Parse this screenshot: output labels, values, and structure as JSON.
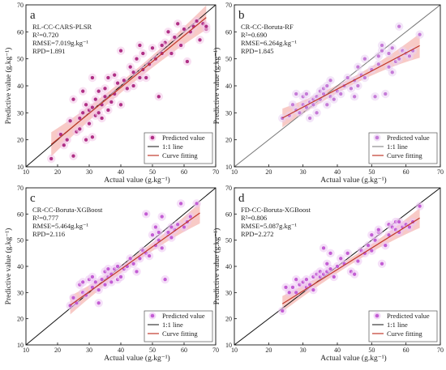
{
  "chart_data": [
    {
      "type": "scatter",
      "panel_label": "a",
      "title_lines": [
        "RL-CC-CARS-PLSR",
        "R²=0.720",
        "RMSE=7.019g.kg⁻¹",
        "RPD=1.891"
      ],
      "xlabel": "Actual value (g.kg⁻¹)",
      "ylabel": "Predictive value (g.kg⁻¹)",
      "xlim": [
        10,
        70
      ],
      "ylim": [
        10,
        70
      ],
      "xticks": [
        "10",
        "20",
        "30",
        "40",
        "50",
        "60",
        "70"
      ],
      "yticks": [
        "10",
        "20",
        "30",
        "40",
        "50",
        "60",
        "70"
      ],
      "fit": {
        "slope": 0.96,
        "intercept": 1.0,
        "x_range": [
          18,
          67
        ]
      },
      "ci_halfwidth": [
        4.5,
        2.0,
        4.5
      ],
      "points": [
        [
          18,
          13
        ],
        [
          21,
          22
        ],
        [
          22,
          18
        ],
        [
          23,
          20
        ],
        [
          24,
          27
        ],
        [
          25,
          35
        ],
        [
          25,
          14
        ],
        [
          26,
          23
        ],
        [
          27,
          24
        ],
        [
          27,
          28
        ],
        [
          28,
          30
        ],
        [
          28,
          38
        ],
        [
          29,
          33
        ],
        [
          29,
          20
        ],
        [
          30,
          26
        ],
        [
          30,
          31
        ],
        [
          31,
          32
        ],
        [
          31,
          21
        ],
        [
          32,
          29
        ],
        [
          32,
          35
        ],
        [
          33,
          30
        ],
        [
          33,
          38
        ],
        [
          34,
          28
        ],
        [
          34,
          33
        ],
        [
          35,
          36
        ],
        [
          35,
          39
        ],
        [
          36,
          31
        ],
        [
          36,
          43
        ],
        [
          37,
          34
        ],
        [
          38,
          37
        ],
        [
          38,
          44
        ],
        [
          39,
          41
        ],
        [
          40,
          33
        ],
        [
          40,
          53
        ],
        [
          41,
          42
        ],
        [
          42,
          39
        ],
        [
          43,
          47
        ],
        [
          44,
          45
        ],
        [
          44,
          40
        ],
        [
          45,
          50
        ],
        [
          46,
          43
        ],
        [
          47,
          46
        ],
        [
          47,
          52
        ],
        [
          48,
          43
        ],
        [
          49,
          48
        ],
        [
          50,
          54
        ],
        [
          51,
          50
        ],
        [
          52,
          36
        ],
        [
          53,
          52
        ],
        [
          54,
          56
        ],
        [
          55,
          60
        ],
        [
          56,
          52
        ],
        [
          57,
          58
        ],
        [
          58,
          63
        ],
        [
          59,
          55
        ],
        [
          60,
          61
        ],
        [
          61,
          49
        ],
        [
          62,
          60
        ],
        [
          63,
          62
        ],
        [
          64,
          64
        ],
        [
          65,
          57
        ],
        [
          66,
          63
        ],
        [
          67,
          61
        ],
        [
          67,
          62
        ],
        [
          46,
          55
        ],
        [
          53,
          55
        ],
        [
          31,
          43
        ]
      ],
      "legend": [
        "Predicted value",
        "1:1 line",
        "Curve fitting"
      ],
      "colors": {
        "point": "#b02f86",
        "point_halo": "#f3c6e8",
        "fit": "#c0392b",
        "band": "#f4a7a0",
        "identity": "#111111"
      }
    },
    {
      "type": "scatter",
      "panel_label": "b",
      "title_lines": [
        "CR-CC-Boruta-RF",
        "R²=0.690",
        "RMSE=6.264g.kg⁻¹",
        "RPD=1.845"
      ],
      "xlabel": "Actual value (g.kg⁻¹)",
      "ylabel": "Predictive value (g.kg⁻¹)",
      "xlim": [
        10,
        70
      ],
      "ylim": [
        10,
        70
      ],
      "xticks": [
        "10",
        "20",
        "30",
        "40",
        "50",
        "60",
        "70"
      ],
      "yticks": [
        "10",
        "20",
        "30",
        "40",
        "50",
        "60",
        "70"
      ],
      "fit": {
        "slope": 0.67,
        "intercept": 12.0,
        "x_range": [
          24,
          64
        ]
      },
      "ci_halfwidth": [
        3.5,
        1.4,
        4.5
      ],
      "points": [
        [
          24,
          28
        ],
        [
          26,
          29
        ],
        [
          27,
          33
        ],
        [
          28,
          31
        ],
        [
          28,
          37
        ],
        [
          29,
          30
        ],
        [
          30,
          33
        ],
        [
          30,
          36
        ],
        [
          31,
          32
        ],
        [
          31,
          37
        ],
        [
          32,
          34
        ],
        [
          32,
          28
        ],
        [
          33,
          35
        ],
        [
          33,
          33
        ],
        [
          34,
          36
        ],
        [
          34,
          30
        ],
        [
          35,
          38
        ],
        [
          35,
          35
        ],
        [
          36,
          37
        ],
        [
          36,
          39
        ],
        [
          37,
          33
        ],
        [
          37,
          40
        ],
        [
          38,
          36
        ],
        [
          38,
          42
        ],
        [
          39,
          35
        ],
        [
          40,
          38
        ],
        [
          41,
          37
        ],
        [
          42,
          40
        ],
        [
          43,
          43
        ],
        [
          44,
          39
        ],
        [
          45,
          42
        ],
        [
          45,
          36
        ],
        [
          46,
          40
        ],
        [
          47,
          44
        ],
        [
          48,
          43
        ],
        [
          50,
          46
        ],
        [
          51,
          36
        ],
        [
          52,
          48
        ],
        [
          52,
          51
        ],
        [
          53,
          53
        ],
        [
          54,
          37
        ],
        [
          55,
          47
        ],
        [
          55,
          52
        ],
        [
          56,
          45
        ],
        [
          56,
          54
        ],
        [
          57,
          49
        ],
        [
          58,
          62
        ],
        [
          58,
          50
        ],
        [
          59,
          53
        ],
        [
          60,
          52
        ],
        [
          61,
          51
        ],
        [
          62,
          53
        ],
        [
          64,
          59
        ],
        [
          53,
          55
        ],
        [
          46,
          47
        ],
        [
          48,
          50
        ]
      ],
      "legend": [
        "Predicted value",
        "1:1 line",
        "Curve fitting"
      ],
      "colors": {
        "point": "#c57bd8",
        "point_halo": "#ead2f2",
        "fit": "#c0392b",
        "band": "#f4a7a0",
        "identity": "#777777"
      }
    },
    {
      "type": "scatter",
      "panel_label": "c",
      "title_lines": [
        "CR-CC-Boruta-XGBoost",
        "R²=0.777",
        "RMSE=5.464g.kg⁻¹",
        "RPD=2.116"
      ],
      "xlabel": "Actual value (g.kg⁻¹)",
      "ylabel": "Predictive value (g.kg⁻¹)",
      "xlim": [
        10,
        70
      ],
      "ylim": [
        10,
        70
      ],
      "xticks": [
        "10",
        "20",
        "30",
        "40",
        "50",
        "60",
        "70"
      ],
      "yticks": [
        "10",
        "20",
        "30",
        "40",
        "50",
        "60",
        "70"
      ],
      "fit": {
        "slope": 0.86,
        "intercept": 4.5,
        "x_range": [
          24,
          65
        ]
      },
      "ci_halfwidth": [
        3.5,
        1.4,
        4.0
      ],
      "points": [
        [
          24,
          25
        ],
        [
          25,
          28
        ],
        [
          26,
          26
        ],
        [
          27,
          33
        ],
        [
          28,
          34
        ],
        [
          28,
          30
        ],
        [
          29,
          29
        ],
        [
          30,
          35
        ],
        [
          31,
          32
        ],
        [
          31,
          36
        ],
        [
          32,
          34
        ],
        [
          33,
          26
        ],
        [
          33,
          31
        ],
        [
          34,
          35
        ],
        [
          35,
          33
        ],
        [
          35,
          38
        ],
        [
          36,
          39
        ],
        [
          36,
          36
        ],
        [
          37,
          34
        ],
        [
          37,
          37
        ],
        [
          38,
          39
        ],
        [
          39,
          40
        ],
        [
          39,
          35
        ],
        [
          40,
          36
        ],
        [
          41,
          39
        ],
        [
          42,
          40
        ],
        [
          43,
          43
        ],
        [
          44,
          41
        ],
        [
          45,
          38
        ],
        [
          46,
          43
        ],
        [
          47,
          46
        ],
        [
          48,
          45
        ],
        [
          49,
          44
        ],
        [
          50,
          52
        ],
        [
          51,
          55
        ],
        [
          51,
          48
        ],
        [
          52,
          50
        ],
        [
          53,
          59
        ],
        [
          53,
          47
        ],
        [
          54,
          35
        ],
        [
          55,
          52
        ],
        [
          55,
          53
        ],
        [
          56,
          51
        ],
        [
          57,
          54
        ],
        [
          58,
          56
        ],
        [
          59,
          64
        ],
        [
          60,
          55
        ],
        [
          61,
          57
        ],
        [
          62,
          59
        ],
        [
          64,
          64
        ],
        [
          52,
          53
        ],
        [
          48,
          60
        ],
        [
          56,
          55
        ]
      ],
      "legend": [
        "Predicted value",
        "1:1 line",
        "Curve fitting"
      ],
      "colors": {
        "point": "#c35dd4",
        "point_halo": "#ecc6f3",
        "fit": "#c0392b",
        "band": "#f4a7a0",
        "identity": "#111111"
      }
    },
    {
      "type": "scatter",
      "panel_label": "d",
      "title_lines": [
        "FD-CC-Boruta-XGBoost",
        "R²=0.806",
        "RMSE=5.087g.kg⁻¹",
        "RPD=2.272"
      ],
      "xlabel": "Actual value (g.kg⁻¹)",
      "ylabel": "Predictive value (g.kg⁻¹)",
      "xlim": [
        10,
        70
      ],
      "ylim": [
        10,
        70
      ],
      "xticks": [
        "10",
        "20",
        "30",
        "40",
        "50",
        "60",
        "70"
      ],
      "yticks": [
        "10",
        "20",
        "30",
        "40",
        "50",
        "60",
        "70"
      ],
      "fit": {
        "slope": 0.82,
        "intercept": 6.0,
        "x_range": [
          24,
          64
        ]
      },
      "ci_halfwidth": [
        3.0,
        1.3,
        3.8
      ],
      "points": [
        [
          24,
          23
        ],
        [
          25,
          32
        ],
        [
          26,
          30
        ],
        [
          27,
          32
        ],
        [
          28,
          35
        ],
        [
          28,
          30
        ],
        [
          29,
          33
        ],
        [
          30,
          34
        ],
        [
          31,
          32
        ],
        [
          31,
          35
        ],
        [
          32,
          33
        ],
        [
          33,
          36
        ],
        [
          33,
          31
        ],
        [
          34,
          37
        ],
        [
          35,
          36
        ],
        [
          35,
          38
        ],
        [
          36,
          37
        ],
        [
          36,
          47
        ],
        [
          37,
          38
        ],
        [
          37,
          41
        ],
        [
          38,
          39
        ],
        [
          38,
          45
        ],
        [
          39,
          36
        ],
        [
          40,
          40
        ],
        [
          41,
          43
        ],
        [
          42,
          41
        ],
        [
          43,
          45
        ],
        [
          44,
          38
        ],
        [
          45,
          37
        ],
        [
          46,
          42
        ],
        [
          47,
          46
        ],
        [
          48,
          45
        ],
        [
          49,
          48
        ],
        [
          50,
          46
        ],
        [
          51,
          50
        ],
        [
          52,
          53
        ],
        [
          52,
          54
        ],
        [
          53,
          41
        ],
        [
          54,
          48
        ],
        [
          55,
          52
        ],
        [
          55,
          56
        ],
        [
          56,
          55
        ],
        [
          57,
          54
        ],
        [
          57,
          57
        ],
        [
          58,
          53
        ],
        [
          59,
          55
        ],
        [
          60,
          56
        ],
        [
          61,
          55
        ],
        [
          62,
          57
        ],
        [
          64,
          63
        ],
        [
          58,
          57
        ],
        [
          50,
          52
        ]
      ],
      "legend": [
        "Predicted value",
        "1:1 line",
        "Curve fitting"
      ],
      "colors": {
        "point": "#c35dd4",
        "point_halo": "#ecc6f3",
        "fit": "#c0392b",
        "band": "#f4a7a0",
        "identity": "#111111"
      }
    }
  ]
}
